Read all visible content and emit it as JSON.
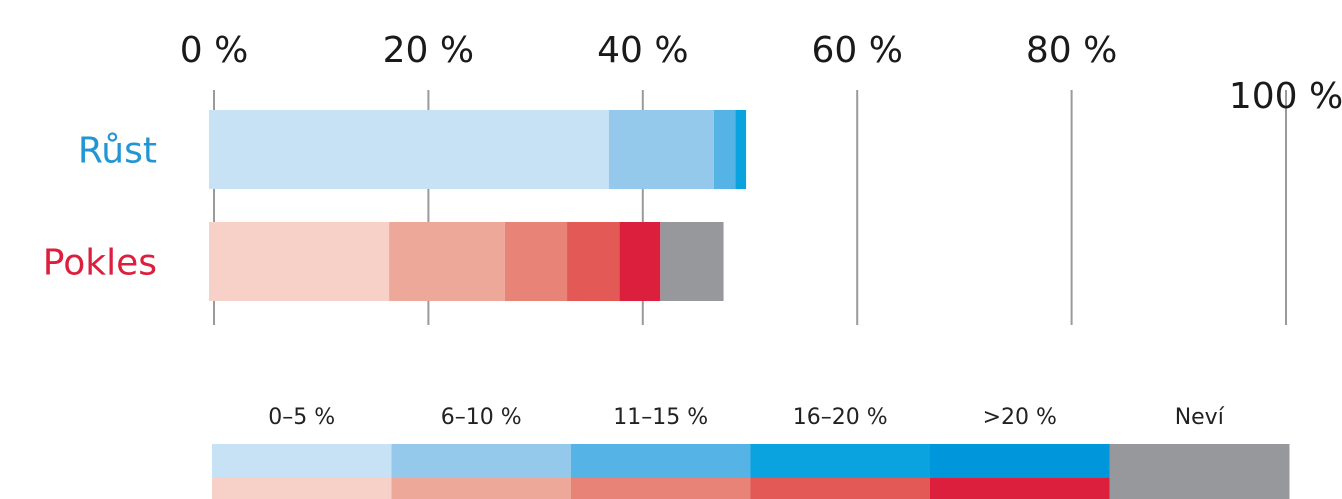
{
  "chart_data": {
    "type": "bar",
    "orientation": "horizontal",
    "stacked": true,
    "xlim": [
      0,
      100
    ],
    "x_tick_labels": [
      "0 %",
      "20 %",
      "40 %",
      "60 %",
      "80 %",
      "100 %"
    ],
    "x_ticks": [
      0,
      20,
      40,
      60,
      80,
      100
    ],
    "grid": true,
    "rows": [
      {
        "label": "Růst",
        "label_color": "#2196d3",
        "segments": [
          {
            "category": "0–5 %",
            "value": 37.3,
            "color": "#c8e2f5"
          },
          {
            "category": "6–10 %",
            "value": 9.8,
            "color": "#94c9ec"
          },
          {
            "category": "11–15 %",
            "value": 2.0,
            "color": "#56b3e6"
          },
          {
            "category": "16–20 %",
            "value": 1.0,
            "color": "#0aa2df"
          },
          {
            "category": ">20 %",
            "value": 0.0,
            "color": "#0096dc"
          },
          {
            "category": "Neví",
            "value": 0.0,
            "color": "#97989b"
          }
        ]
      },
      {
        "label": "Pokles",
        "label_color": "#dc1f3c",
        "segments": [
          {
            "category": "0–5 %",
            "value": 16.8,
            "color": "#f7d0c8"
          },
          {
            "category": "6–10 %",
            "value": 10.8,
            "color": "#eda89a"
          },
          {
            "category": "11–15 %",
            "value": 5.8,
            "color": "#e88377"
          },
          {
            "category": "16–20 %",
            "value": 4.9,
            "color": "#e35956"
          },
          {
            "category": ">20 %",
            "value": 3.8,
            "color": "#dc1f3c"
          },
          {
            "category": "Neví",
            "value": 5.9,
            "color": "#97989b"
          }
        ]
      }
    ],
    "legend": {
      "placement": "bottom",
      "categories": [
        "0–5 %",
        "6–10 %",
        "11–15 %",
        "16–20 %",
        ">20 %",
        "Neví"
      ],
      "top_colors": [
        "#c8e2f5",
        "#94c9ec",
        "#56b3e6",
        "#0aa2df",
        "#0096dc",
        "#97989b"
      ],
      "bottom_colors": [
        "#f7d0c8",
        "#eda89a",
        "#e88377",
        "#e35956",
        "#dc1f3c",
        "#97989b"
      ]
    }
  }
}
